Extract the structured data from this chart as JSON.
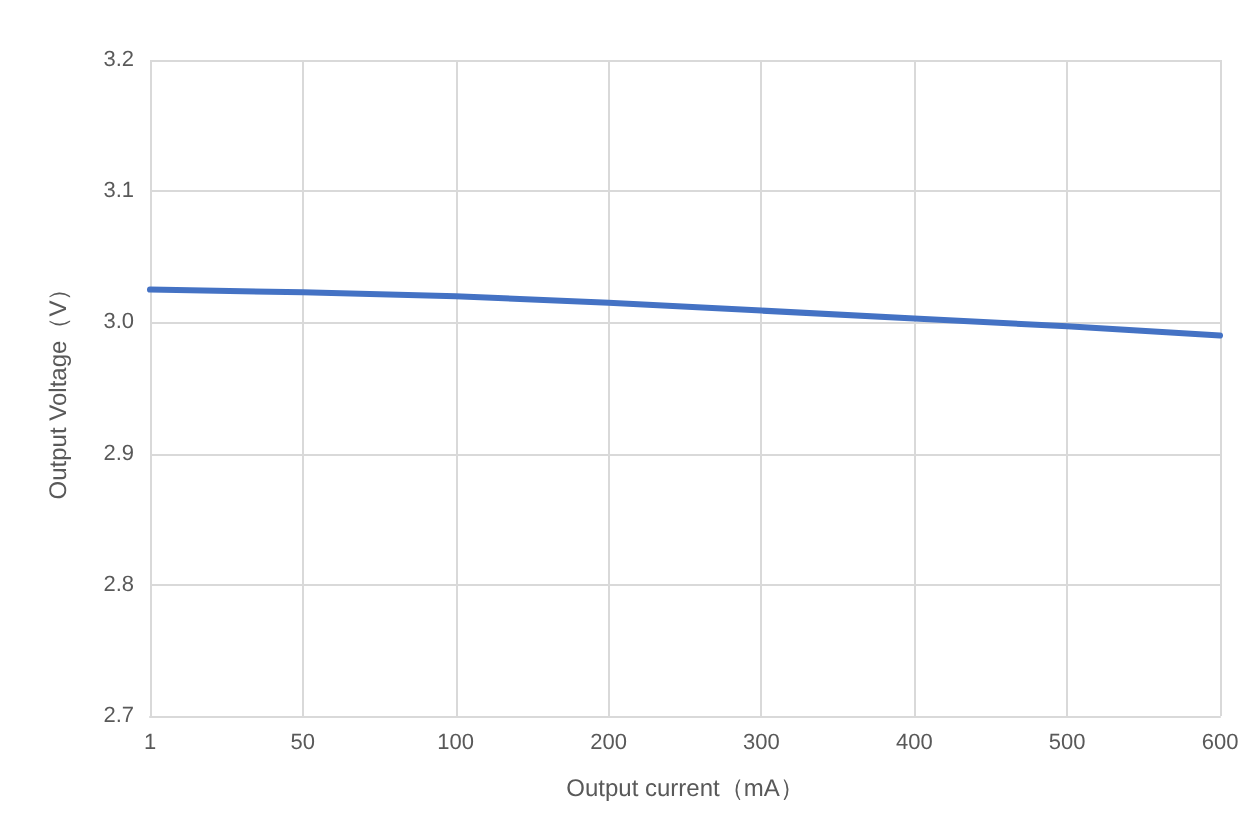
{
  "chart_data": {
    "type": "line",
    "xlabel": "Output current（mA）",
    "ylabel": "Output Voltage（V）",
    "categories": [
      "1",
      "50",
      "100",
      "200",
      "300",
      "400",
      "500",
      "600"
    ],
    "series": [
      {
        "color": "#4472c4",
        "values": [
          3.025,
          3.023,
          3.02,
          3.015,
          3.009,
          3.003,
          2.997,
          2.99
        ]
      }
    ],
    "ylim": [
      2.7,
      3.2
    ],
    "yticks": [
      2.7,
      2.8,
      2.9,
      {
        "value": 3,
        "label": "3.0"
      },
      3.1,
      3.2
    ],
    "grid": true,
    "marker": "none",
    "line_style": "solid"
  }
}
